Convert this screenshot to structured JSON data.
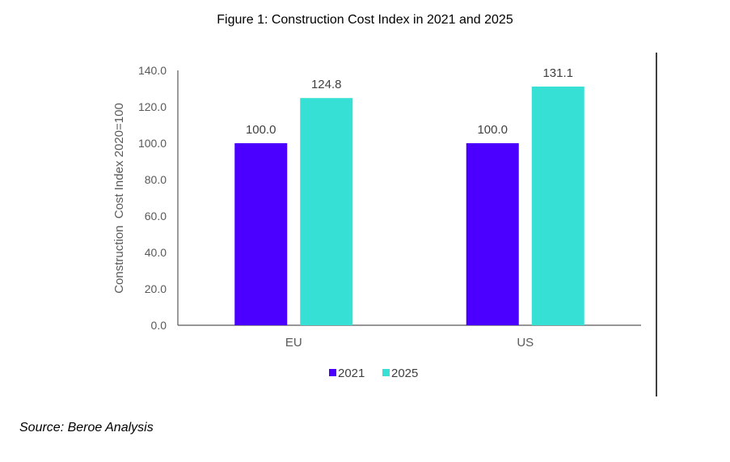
{
  "chart_data": {
    "type": "bar",
    "title": "Figure 1: Construction Cost Index in 2021 and 2025",
    "categories": [
      "EU",
      "US"
    ],
    "series": [
      {
        "name": "2021",
        "values": [
          100.0,
          100.0
        ],
        "labels": [
          "100.0",
          "100.0"
        ],
        "color": "#4B00FF"
      },
      {
        "name": "2025",
        "values": [
          124.8,
          131.1
        ],
        "labels": [
          "124.8",
          "131.1"
        ],
        "color": "#36E0D5"
      }
    ],
    "xlabel": "",
    "ylabel": "Construction  Cost Index 2020=100",
    "ylim": [
      0,
      140
    ],
    "yticks": [
      "0.0",
      "20.0",
      "40.0",
      "60.0",
      "80.0",
      "100.0",
      "120.0",
      "140.0"
    ],
    "grid": false,
    "legend": "bottom"
  },
  "source": "Source: Beroe Analysis"
}
